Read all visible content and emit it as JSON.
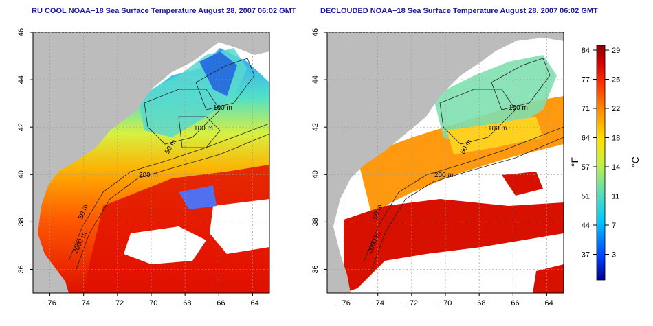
{
  "panels": [
    {
      "title": "RU COOL NOAA−18 Sea Surface Temperature August 28, 2007 06:02 GMT",
      "mode": "cloudy"
    },
    {
      "title": "DECLOUDED NOAA−18 Sea Surface Temperature August 28, 2007 06:02 GMT",
      "mode": "declouded"
    }
  ],
  "axes": {
    "lon_range": [
      -77,
      -63
    ],
    "lat_range": [
      35,
      46
    ],
    "lon_ticks": [
      "−76",
      "−74",
      "−72",
      "−70",
      "−68",
      "−66",
      "−64"
    ],
    "lat_ticks": [
      "36",
      "38",
      "40",
      "42",
      "44",
      "46"
    ],
    "grid": "dotted"
  },
  "contour_labels": [
    "100 m",
    "100 m",
    "50 m",
    "200 m",
    "50 m",
    "2000 m"
  ],
  "colorbar": {
    "fahrenheit_ticks": [
      "84",
      "77",
      "71",
      "64",
      "57",
      "51",
      "44",
      "37"
    ],
    "celsius_ticks": [
      "29",
      "25",
      "22",
      "18",
      "14",
      "11",
      "7",
      "3"
    ],
    "fahrenheit_label": "°F",
    "celsius_label": "°C",
    "colors": [
      "#00008b",
      "#0040ff",
      "#00c8ff",
      "#60e0b0",
      "#c8f040",
      "#ffe000",
      "#ff9000",
      "#ff3000",
      "#c00000",
      "#8b0000"
    ]
  },
  "colors": {
    "land": "#bcbcbc",
    "cloud": "#ffffff",
    "title": "#1a1aa0"
  }
}
